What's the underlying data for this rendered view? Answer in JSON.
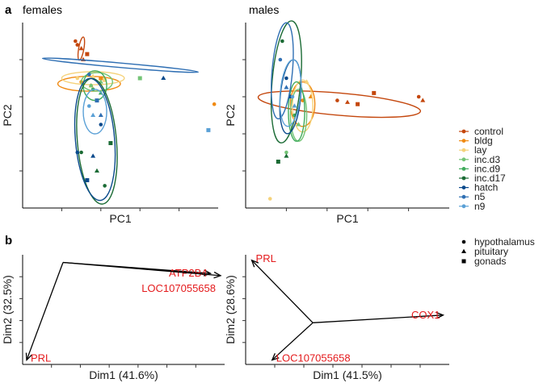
{
  "chart_data": [
    {
      "panel": "a",
      "title": "females",
      "type": "scatter",
      "xlabel": "PC1",
      "ylabel": "PC2",
      "ellipses": true,
      "x_ticks": 4,
      "y_ticks": 4,
      "groups": [
        {
          "name": "control",
          "color": "#c4470d",
          "ellipse": {
            "cx": 0.3,
            "cy": 0.86,
            "rx": 0.06,
            "ry": 0.014,
            "angle": 80
          },
          "points": [
            [
              0.27,
              0.9
            ],
            [
              0.3,
              0.86
            ],
            [
              0.33,
              0.83
            ],
            [
              0.28,
              0.88
            ],
            [
              0.31,
              0.8
            ]
          ]
        },
        {
          "name": "bldg",
          "color": "#f08a12",
          "ellipse": {
            "cx": 0.34,
            "cy": 0.67,
            "rx": 0.16,
            "ry": 0.04,
            "angle": 0
          },
          "points": [
            [
              0.3,
              0.68
            ],
            [
              0.35,
              0.66
            ],
            [
              0.4,
              0.7
            ],
            [
              0.98,
              0.56
            ]
          ]
        },
        {
          "name": "lay",
          "color": "#f5d27a",
          "ellipse": {
            "cx": 0.36,
            "cy": 0.7,
            "rx": 0.16,
            "ry": 0.035,
            "angle": 0
          },
          "points": [
            [
              0.28,
              0.7
            ],
            [
              0.36,
              0.71
            ],
            [
              0.42,
              0.69
            ]
          ]
        },
        {
          "name": "inc.d3",
          "color": "#74c476",
          "ellipse": {
            "cx": 0.38,
            "cy": 0.68,
            "rx": 0.08,
            "ry": 0.05,
            "angle": 0
          },
          "points": [
            [
              0.35,
              0.66
            ],
            [
              0.4,
              0.68
            ],
            [
              0.6,
              0.7
            ]
          ]
        },
        {
          "name": "inc.d9",
          "color": "#41ab5d",
          "ellipse": {
            "cx": 0.37,
            "cy": 0.66,
            "rx": 0.06,
            "ry": 0.08,
            "angle": 0
          },
          "points": [
            [
              0.36,
              0.64
            ],
            [
              0.4,
              0.62
            ]
          ]
        },
        {
          "name": "inc.d17",
          "color": "#1b6b35",
          "ellipse": {
            "cx": 0.38,
            "cy": 0.36,
            "rx": 0.1,
            "ry": 0.34,
            "angle": 5
          },
          "points": [
            [
              0.3,
              0.3
            ],
            [
              0.38,
              0.2
            ],
            [
              0.45,
              0.35
            ],
            [
              0.42,
              0.12
            ]
          ]
        },
        {
          "name": "hatch",
          "color": "#0a4a8c",
          "ellipse": {
            "cx": 0.37,
            "cy": 0.37,
            "rx": 0.1,
            "ry": 0.33,
            "angle": 5
          },
          "points": [
            [
              0.28,
              0.3
            ],
            [
              0.36,
              0.28
            ],
            [
              0.33,
              0.15
            ],
            [
              0.4,
              0.45
            ],
            [
              0.72,
              0.7
            ]
          ]
        },
        {
          "name": "n5",
          "color": "#2f6fb3",
          "ellipse": {
            "cx": 0.5,
            "cy": 0.77,
            "rx": 0.4,
            "ry": 0.012,
            "angle": -5
          },
          "points": [
            [
              0.34,
              0.72
            ],
            [
              0.4,
              0.5
            ],
            [
              0.38,
              0.58
            ]
          ]
        },
        {
          "name": "n9",
          "color": "#5aa0d6",
          "ellipse": {
            "cx": 0.37,
            "cy": 0.52,
            "rx": 0.06,
            "ry": 0.12,
            "angle": 0
          },
          "points": [
            [
              0.34,
              0.55
            ],
            [
              0.36,
              0.5
            ],
            [
              0.95,
              0.42
            ]
          ]
        }
      ]
    },
    {
      "panel": "a",
      "title": "males",
      "type": "scatter",
      "xlabel": "PC1",
      "ylabel": "PC2",
      "ellipses": true,
      "x_ticks": 4,
      "y_ticks": 4,
      "groups": [
        {
          "name": "control",
          "color": "#c4470d",
          "ellipse": {
            "cx": 0.46,
            "cy": 0.56,
            "rx": 0.4,
            "ry": 0.06,
            "angle": -5
          },
          "points": [
            [
              0.45,
              0.58
            ],
            [
              0.5,
              0.57
            ],
            [
              0.55,
              0.56
            ],
            [
              0.85,
              0.6
            ],
            [
              0.87,
              0.58
            ],
            [
              0.63,
              0.62
            ]
          ]
        },
        {
          "name": "bldg",
          "color": "#f08a12",
          "ellipse": {
            "cx": 0.28,
            "cy": 0.56,
            "rx": 0.06,
            "ry": 0.12,
            "angle": 0
          },
          "points": [
            [
              0.28,
              0.58
            ],
            [
              0.32,
              0.6
            ]
          ]
        },
        {
          "name": "lay",
          "color": "#f5d27a",
          "ellipse": {
            "cx": 0.28,
            "cy": 0.55,
            "rx": 0.05,
            "ry": 0.14,
            "angle": 0
          },
          "points": [
            [
              0.12,
              0.05
            ],
            [
              0.3,
              0.68
            ]
          ]
        },
        {
          "name": "inc.d3",
          "color": "#74c476",
          "ellipse": {
            "cx": 0.26,
            "cy": 0.5,
            "rx": 0.04,
            "ry": 0.14,
            "angle": 0
          },
          "points": [
            [
              0.2,
              0.3
            ],
            [
              0.26,
              0.45
            ]
          ]
        },
        {
          "name": "inc.d9",
          "color": "#41ab5d",
          "ellipse": {
            "cx": 0.25,
            "cy": 0.52,
            "rx": 0.04,
            "ry": 0.16,
            "angle": 0
          },
          "points": [
            [
              0.24,
              0.5
            ]
          ]
        },
        {
          "name": "inc.d17",
          "color": "#1b6b35",
          "ellipse": {
            "cx": 0.2,
            "cy": 0.68,
            "rx": 0.07,
            "ry": 0.33,
            "angle": -5
          },
          "points": [
            [
              0.18,
              0.9
            ],
            [
              0.2,
              0.28
            ],
            [
              0.16,
              0.25
            ]
          ]
        },
        {
          "name": "hatch",
          "color": "#0a4a8c",
          "ellipse": {
            "cx": 0.22,
            "cy": 0.6,
            "rx": 0.05,
            "ry": 0.2,
            "angle": -5
          },
          "points": [
            [
              0.2,
              0.7
            ],
            [
              0.22,
              0.6
            ]
          ]
        },
        {
          "name": "n5",
          "color": "#2f6fb3",
          "ellipse": {
            "cx": 0.18,
            "cy": 0.74,
            "rx": 0.05,
            "ry": 0.26,
            "angle": -5
          },
          "points": [
            [
              0.17,
              0.8
            ],
            [
              0.2,
              0.65
            ]
          ]
        },
        {
          "name": "n9",
          "color": "#5aa0d6",
          "ellipse": {
            "cx": 0.22,
            "cy": 0.62,
            "rx": 0.05,
            "ry": 0.18,
            "angle": -5
          },
          "points": [
            [
              0.23,
              0.6
            ],
            [
              0.24,
              0.55
            ]
          ]
        }
      ]
    },
    {
      "panel": "b",
      "title": "",
      "type": "biplot",
      "xlabel": "Dim1 (41.6%)",
      "ylabel": "Dim2 (32.5%)",
      "origin": [
        0.2,
        0.93
      ],
      "x_ticks": 6,
      "y_ticks": 4,
      "vectors": [
        {
          "label": "PRL",
          "x": 0.02,
          "y": 0.04,
          "label_pos": "right"
        },
        {
          "label": "ATP2B4",
          "x": 0.93,
          "y": 0.83,
          "label_pos": "left"
        },
        {
          "label": "LOC107055658",
          "x": 0.98,
          "y": 0.81,
          "label_pos": "below-left"
        }
      ]
    },
    {
      "panel": "b",
      "title": "",
      "type": "biplot",
      "xlabel": "Dim1 (41.5%)",
      "ylabel": "Dim2 (28.6%)",
      "origin": [
        0.33,
        0.38
      ],
      "x_ticks": 6,
      "y_ticks": 4,
      "vectors": [
        {
          "label": "PRL",
          "x": 0.03,
          "y": 0.95,
          "label_pos": "right"
        },
        {
          "label": "COX1",
          "x": 0.97,
          "y": 0.45,
          "label_pos": "left"
        },
        {
          "label": "LOC107055658",
          "x": 0.13,
          "y": 0.04,
          "label_pos": "right"
        }
      ]
    }
  ],
  "panel_labels": {
    "a": "a",
    "b": "b"
  },
  "titles": {
    "females": "females",
    "males": "males"
  },
  "legend_groups": {
    "items": [
      {
        "name": "control",
        "color": "#c4470d"
      },
      {
        "name": "bldg",
        "color": "#f08a12"
      },
      {
        "name": "lay",
        "color": "#f5d27a"
      },
      {
        "name": "inc.d3",
        "color": "#74c476"
      },
      {
        "name": "inc.d9",
        "color": "#41ab5d"
      },
      {
        "name": "inc.d17",
        "color": "#1b6b35"
      },
      {
        "name": "hatch",
        "color": "#0a4a8c"
      },
      {
        "name": "n5",
        "color": "#2f6fb3"
      },
      {
        "name": "n9",
        "color": "#5aa0d6"
      }
    ]
  },
  "legend_tissues": {
    "items": [
      {
        "name": "hypothalamus",
        "shape": "circle"
      },
      {
        "name": "pituitary",
        "shape": "triangle"
      },
      {
        "name": "gonads",
        "shape": "square"
      }
    ]
  }
}
